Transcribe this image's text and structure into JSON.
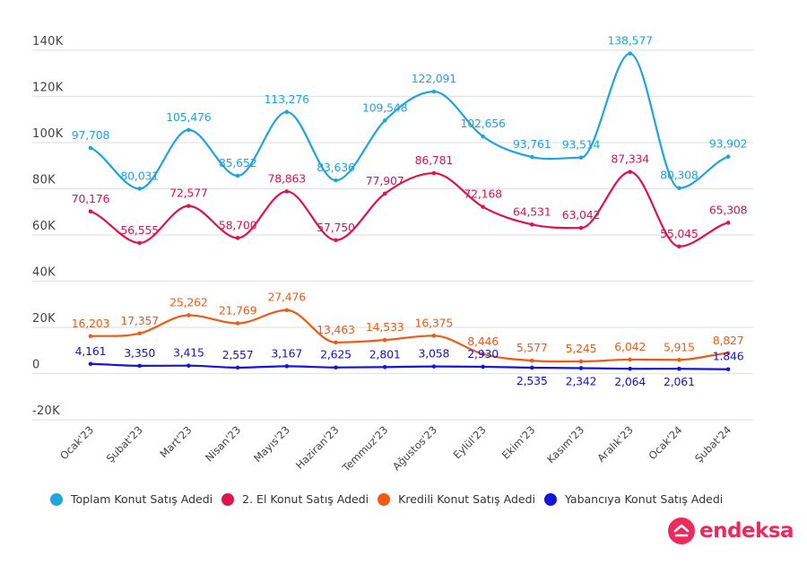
{
  "chart_data": {
    "type": "line",
    "title": "",
    "xlabel": "",
    "ylabel": "",
    "ylim": [
      -20000,
      140000
    ],
    "yticks": [
      -20000,
      0,
      20000,
      40000,
      60000,
      80000,
      100000,
      120000,
      140000
    ],
    "ytick_labels": [
      "-20K",
      "0",
      "20K",
      "40K",
      "60K",
      "80K",
      "100K",
      "120K",
      "140K"
    ],
    "grid": true,
    "smooth": true,
    "legend_position": "bottom",
    "categories": [
      "Ocak'23",
      "Şubat'23",
      "Mart'23",
      "Nisan'23",
      "Mayıs'23",
      "Haziran'23",
      "Temmuz'23",
      "Ağustos'23",
      "Eylül'23",
      "Ekim'23",
      "Kasım'23",
      "Aralık'23",
      "Ocak'24",
      "Şubat'24"
    ],
    "series": [
      {
        "name": "Toplam Konut Satış Adedi",
        "color": "#1ea5dc",
        "values": [
          97708,
          80031,
          105476,
          85652,
          113276,
          83636,
          109548,
          122091,
          102656,
          93761,
          93514,
          138577,
          80308,
          93902
        ],
        "labels": [
          "97,708",
          "80,031",
          "105,476",
          "85,652",
          "113,276",
          "83,636",
          "109,548",
          "122,091",
          "102,656",
          "93,761",
          "93,514",
          "138,577",
          "80,308",
          "93,902"
        ]
      },
      {
        "name": "2. El Konut Satış Adedi",
        "color": "#e0124f",
        "values": [
          70176,
          56555,
          72577,
          58700,
          78863,
          57750,
          77907,
          86781,
          72168,
          64531,
          63042,
          87334,
          55045,
          65308
        ],
        "labels": [
          "70,176",
          "56,555",
          "72,577",
          "58,700",
          "78,863",
          "57,750",
          "77,907",
          "86,781",
          "72,168",
          "64,531",
          "63,042",
          "87,334",
          "55,045",
          "65,308"
        ]
      },
      {
        "name": "Kredili Konut Satış Adedi",
        "color": "#f05a14",
        "values": [
          16203,
          17357,
          25262,
          21769,
          27476,
          13463,
          14533,
          16375,
          8446,
          5577,
          5245,
          6042,
          5915,
          8827
        ],
        "labels": [
          "16,203",
          "17,357",
          "25,262",
          "21,769",
          "27,476",
          "13,463",
          "14,533",
          "16,375",
          "8,446",
          "5,577",
          "5,245",
          "6,042",
          "5,915",
          "8,827"
        ]
      },
      {
        "name": "Yabancıya Konut Satış Adedi",
        "color": "#1414dc",
        "values": [
          4161,
          3350,
          3415,
          2557,
          3167,
          2625,
          2801,
          3058,
          2930,
          2535,
          2342,
          2064,
          2061,
          1846
        ],
        "labels": [
          "4,161",
          "3,350",
          "3,415",
          "2,557",
          "3,167",
          "2,625",
          "2,801",
          "3,058",
          "2,930",
          "2,535",
          "2,342",
          "2,064",
          "2,061",
          "1.846"
        ]
      }
    ]
  },
  "legend": {
    "items": [
      {
        "label": "Toplam Konut Satış Adedi",
        "color": "#1ea5dc"
      },
      {
        "label": "2. El Konut Satış Adedi",
        "color": "#e0124f"
      },
      {
        "label": "Kredili Konut Satış Adedi",
        "color": "#f05a14"
      },
      {
        "label": "Yabancıya Konut Satış Adedi",
        "color": "#1414dc"
      }
    ]
  },
  "brand": {
    "name": "endeksa",
    "color": "#ee2a5a",
    "icon": "house-chevron-icon"
  }
}
